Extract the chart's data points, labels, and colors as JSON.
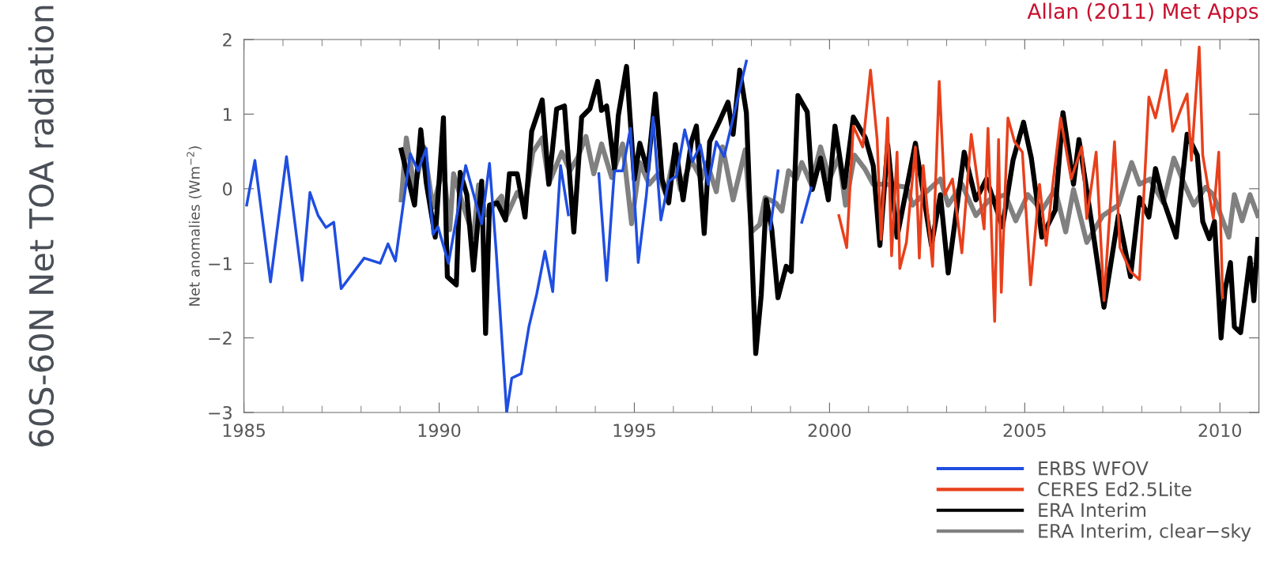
{
  "chart_data": {
    "type": "line",
    "title": "60S-60N Net TOA radiation",
    "ylabel": "Net anomalies (Wm$^{−2}$)",
    "annotations": [
      "Allan (2011) Met Apps"
    ],
    "xlim": [
      1985,
      2011
    ],
    "xticks": [
      1985,
      {
        "value": 1986,
        "label": null
      },
      {
        "value": 1987,
        "label": null
      },
      {
        "value": 1988,
        "label": null
      },
      {
        "value": 1989,
        "label": null
      },
      1990,
      {
        "value": 1991,
        "label": null
      },
      {
        "value": 1992,
        "label": null
      },
      {
        "value": 1993,
        "label": null
      },
      {
        "value": 1994,
        "label": null
      },
      1995,
      {
        "value": 1996,
        "label": null
      },
      {
        "value": 1997,
        "label": null
      },
      {
        "value": 1998,
        "label": null
      },
      {
        "value": 1999,
        "label": null
      },
      2000,
      {
        "value": 2001,
        "label": null
      },
      {
        "value": 2002,
        "label": null
      },
      {
        "value": 2003,
        "label": null
      },
      {
        "value": 2004,
        "label": null
      },
      2005,
      {
        "value": 2006,
        "label": null
      },
      {
        "value": 2007,
        "label": null
      },
      {
        "value": 2008,
        "label": null
      },
      {
        "value": 2009,
        "label": null
      },
      2010
    ],
    "ylim": [
      -3,
      2
    ],
    "yticks": [
      {
        "value": -3,
        "label": "−3"
      },
      {
        "value": -2,
        "label": "−2"
      },
      {
        "value": -1,
        "label": "−1"
      },
      0,
      1,
      2
    ],
    "grid": false,
    "legend": "bottom right",
    "series": [
      {
        "name": "ERBS WFOV",
        "color": "#1f4ee0",
        "x": [
          1985.07,
          1985.28,
          1985.68,
          1986.09,
          1986.49,
          1986.69,
          1986.9,
          1987.1,
          1987.3,
          1987.49,
          1988.08,
          1988.49,
          1988.69,
          1988.88,
          1989.26,
          1989.46,
          1989.67,
          1989.84,
          1989.97,
          1990.24,
          1990.68,
          1991.09,
          1991.29,
          1991.46,
          1991.73,
          1991.86,
          1992.1,
          1992.3,
          1992.5,
          1992.71,
          1992.91,
          1993.11,
          1993.31,
          1993.7,
          1994.09,
          1994.29,
          1994.49,
          1994.7,
          1994.9,
          1995.1,
          1995.31,
          1995.48,
          1995.68,
          1995.88,
          1996.08,
          1996.29,
          1996.49,
          1996.69,
          1996.89,
          1997.1,
          1997.3,
          1997.87,
          1998.2,
          1998.48,
          1998.68,
          1999.0,
          1999.29,
          1999.53
        ],
        "values": [
          -0.22,
          0.38,
          -1.25,
          0.43,
          -1.23,
          -0.05,
          -0.36,
          -0.52,
          -0.45,
          -1.34,
          -0.93,
          -1.0,
          -0.74,
          -0.97,
          0.47,
          0.24,
          0.54,
          -0.61,
          -0.51,
          -1.0,
          0.31,
          -0.47,
          0.34,
          -0.83,
          -3.0,
          -2.54,
          -2.48,
          -1.85,
          -1.41,
          -0.84,
          -1.38,
          0.31,
          -0.35,
          null,
          0.2,
          -1.23,
          0.24,
          0.24,
          0.81,
          -0.99,
          -0.08,
          0.96,
          -0.42,
          0.1,
          0.17,
          0.79,
          0.36,
          0.59,
          0.06,
          0.63,
          0.43,
          1.71,
          null,
          -0.54,
          0.24,
          null,
          -0.45,
          0.01
        ]
      },
      {
        "name": "CERES Ed2.5Lite",
        "color": "#e8401c",
        "x": [
          2000.24,
          2000.44,
          2000.61,
          2000.85,
          2001.05,
          2001.22,
          2001.32,
          2001.49,
          2001.59,
          2001.73,
          2001.8,
          2001.97,
          2002.2,
          2002.3,
          2002.4,
          2002.64,
          2002.81,
          2002.95,
          2003.15,
          2003.39,
          2003.63,
          2003.96,
          2004.06,
          2004.23,
          2004.33,
          2004.4,
          2004.57,
          2004.74,
          2004.94,
          2005.15,
          2005.38,
          2005.55,
          2005.72,
          2005.92,
          2006.19,
          2006.46,
          2006.59,
          2006.83,
          2007.03,
          2007.3,
          2007.44,
          2007.71,
          2007.94,
          2008.18,
          2008.35,
          2008.62,
          2008.79,
          2008.99,
          2009.16,
          2009.27,
          2009.47,
          2009.56,
          2009.83,
          2009.97,
          2010.07
        ],
        "values": [
          -0.36,
          -0.79,
          0.84,
          0.56,
          1.59,
          0.66,
          -0.68,
          0.95,
          -0.9,
          0.49,
          -1.07,
          -0.72,
          0.56,
          -0.93,
          0.31,
          -1.04,
          1.44,
          -0.08,
          0.13,
          -0.86,
          0.73,
          -0.54,
          0.81,
          -1.78,
          0.66,
          -1.39,
          0.95,
          0.63,
          0.49,
          -1.29,
          0.06,
          -0.76,
          0.06,
          0.95,
          0.13,
          0.56,
          -0.4,
          0.49,
          -1.5,
          0.63,
          -0.79,
          -1.11,
          -1.22,
          1.23,
          0.95,
          1.59,
          0.77,
          1.05,
          1.27,
          0.38,
          1.9,
          0.45,
          -0.4,
          0.49,
          -1.46
        ]
      },
      {
        "name": "ERA Interim",
        "color": "#000000",
        "x": [
          1989.03,
          1989.37,
          1989.53,
          1989.67,
          1989.9,
          1990.11,
          1990.21,
          1990.44,
          1990.54,
          1990.71,
          1990.88,
          1991.09,
          1991.19,
          1991.29,
          1991.49,
          1991.7,
          1991.8,
          1992.0,
          1992.2,
          1992.37,
          1992.64,
          1992.81,
          1993.01,
          1993.21,
          1993.45,
          1993.65,
          1993.86,
          1994.06,
          1994.16,
          1994.29,
          1994.49,
          1994.59,
          1994.8,
          1995.0,
          1995.14,
          1995.34,
          1995.54,
          1995.71,
          1995.88,
          1996.05,
          1996.25,
          1996.46,
          1996.59,
          1996.79,
          1996.93,
          1997.16,
          1997.4,
          1997.53,
          1997.7,
          1997.87,
          1998.11,
          1998.25,
          1998.38,
          1998.52,
          1998.68,
          1998.89,
          1999.02,
          1999.19,
          1999.43,
          1999.56,
          1999.77,
          1999.97,
          2000.14,
          2000.38,
          2000.61,
          2000.92,
          2001.12,
          2001.29,
          2001.49,
          2001.73,
          2002.2,
          2002.61,
          2002.84,
          2003.04,
          2003.45,
          2003.75,
          2004.02,
          2004.43,
          2004.7,
          2004.97,
          2005.17,
          2005.44,
          2005.78,
          2005.98,
          2006.25,
          2006.39,
          2006.73,
          2007.03,
          2007.4,
          2007.71,
          2007.94,
          2008.18,
          2008.35,
          2008.55,
          2008.88,
          2009.16,
          2009.42,
          2009.56,
          2009.73,
          2009.86,
          2010.03,
          2010.13,
          2010.27,
          2010.37,
          2010.53,
          2010.77,
          2010.87,
          2010.97
        ],
        "values": [
          0.52,
          -0.22,
          0.79,
          0.08,
          -0.65,
          0.95,
          -1.18,
          -1.29,
          0.22,
          -0.08,
          -1.09,
          0.1,
          -1.94,
          -0.22,
          -0.19,
          -0.42,
          0.2,
          0.2,
          -0.38,
          0.77,
          1.19,
          0.06,
          1.07,
          1.11,
          -0.58,
          0.96,
          1.07,
          1.44,
          1.05,
          1.11,
          0.27,
          0.98,
          1.64,
          0.13,
          0.61,
          0.24,
          1.27,
          0.13,
          -0.19,
          0.59,
          -0.15,
          0.63,
          0.84,
          -0.6,
          0.63,
          0.88,
          1.16,
          0.73,
          1.59,
          1.02,
          -2.21,
          -1.43,
          -0.15,
          -0.54,
          -1.46,
          -1.04,
          -1.11,
          1.25,
          1.03,
          -0.01,
          0.41,
          -0.15,
          0.84,
          0.02,
          0.96,
          0.68,
          0.31,
          -0.76,
          0.59,
          -0.65,
          0.61,
          -0.76,
          -0.08,
          -1.13,
          0.49,
          -0.15,
          0.13,
          -0.51,
          0.38,
          0.89,
          0.41,
          -0.65,
          -0.29,
          1.02,
          0.06,
          0.66,
          -0.51,
          -1.59,
          -0.36,
          -1.18,
          -0.12,
          -0.38,
          0.27,
          -0.15,
          -0.65,
          0.73,
          0.45,
          -0.44,
          -0.67,
          -0.44,
          -2.0,
          -1.36,
          -0.99,
          -1.85,
          -1.93,
          -0.93,
          -1.5,
          -0.68
        ]
      },
      {
        "name": "ERA Interim, clear−sky",
        "color": "#808080",
        "x": [
          1989.03,
          1989.16,
          1989.37,
          1989.61,
          1989.84,
          1990.11,
          1990.27,
          1990.37,
          1990.6,
          1990.88,
          1991.01,
          1991.19,
          1991.6,
          1991.7,
          1992.0,
          1992.2,
          1992.4,
          1992.64,
          1992.81,
          1993.14,
          1993.35,
          1993.56,
          1993.76,
          1993.96,
          1994.16,
          1994.42,
          1994.7,
          1994.93,
          1995.14,
          1995.38,
          1995.61,
          1995.81,
          1996.01,
          1996.18,
          1996.46,
          1996.72,
          1996.86,
          1997.1,
          1997.26,
          1997.53,
          1997.84,
          1998.0,
          1998.21,
          1998.35,
          1998.62,
          1998.78,
          1998.95,
          1999.15,
          1999.29,
          1999.53,
          1999.77,
          2000.0,
          2000.24,
          2000.41,
          2000.64,
          2000.9,
          2001.12,
          2001.44,
          2001.97,
          2002.13,
          2002.4,
          2002.84,
          2003.04,
          2003.39,
          2003.75,
          2004.09,
          2004.5,
          2004.77,
          2005.08,
          2005.44,
          2005.78,
          2006.05,
          2006.25,
          2006.59,
          2007.0,
          2007.4,
          2007.74,
          2007.94,
          2008.21,
          2008.55,
          2008.82,
          2009.09,
          2009.33,
          2009.63,
          2009.83,
          2010.23,
          2010.37,
          2010.57,
          2010.77,
          2010.97
        ],
        "values": [
          -0.15,
          0.68,
          0.0,
          0.56,
          -0.25,
          0.3,
          -0.55,
          0.2,
          -0.2,
          -0.65,
          0.05,
          -0.35,
          -0.1,
          -0.4,
          -0.05,
          -0.2,
          0.49,
          0.68,
          0.07,
          0.49,
          0.24,
          0.43,
          0.7,
          0.2,
          0.6,
          0.15,
          0.6,
          -0.47,
          0.35,
          0.06,
          0.2,
          -0.08,
          0.43,
          -0.01,
          0.38,
          0.13,
          0.35,
          -0.04,
          0.56,
          -0.15,
          0.52,
          -0.58,
          -0.48,
          -0.12,
          -0.19,
          -0.3,
          0.24,
          0.13,
          0.35,
          0.06,
          0.56,
          0.13,
          0.43,
          -0.22,
          0.45,
          0.27,
          0.06,
          0.06,
          0.02,
          -0.22,
          -0.08,
          0.13,
          -0.22,
          0.06,
          -0.36,
          -0.15,
          -0.08,
          -0.43,
          -0.08,
          -0.29,
          -0.01,
          -0.58,
          -0.01,
          -0.72,
          -0.36,
          -0.22,
          0.35,
          0.06,
          0.13,
          -0.19,
          0.41,
          0.06,
          -0.22,
          0.02,
          -0.08,
          -0.65,
          -0.08,
          -0.43,
          -0.08,
          -0.36
        ]
      }
    ]
  }
}
